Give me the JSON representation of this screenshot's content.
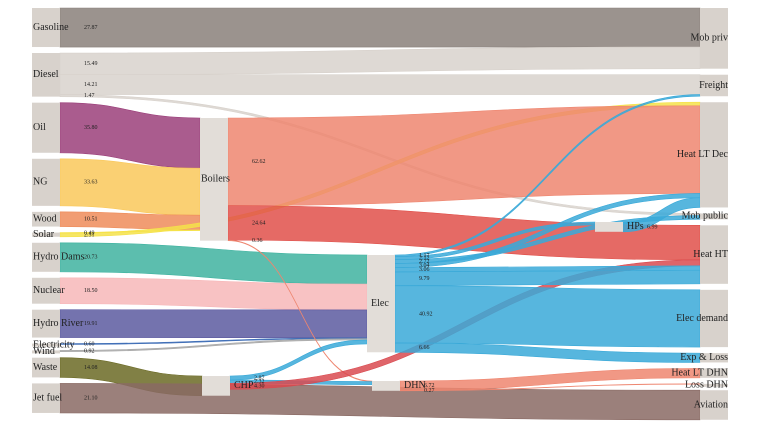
{
  "chart_data": {
    "type": "sankey",
    "nodes": [
      {
        "name": "Gasoline",
        "color": "#8a807a"
      },
      {
        "name": "Diesel",
        "color": "#d8d2cc"
      },
      {
        "name": "Oil",
        "color": "#9b3f7a"
      },
      {
        "name": "NG",
        "color": "#f9c85a"
      },
      {
        "name": "Wood",
        "color": "#ee8c5a"
      },
      {
        "name": "Solar",
        "color": "#f5e24a"
      },
      {
        "name": "Hydro Dams",
        "color": "#3fb3a0"
      },
      {
        "name": "Nuclear",
        "color": "#f7b7b9"
      },
      {
        "name": "Hydro River",
        "color": "#5c5aa0"
      },
      {
        "name": "Electricity",
        "color": "#3b6bb5"
      },
      {
        "name": "Wind",
        "color": "#a8a8a8"
      },
      {
        "name": "Waste",
        "color": "#6b6a25"
      },
      {
        "name": "Jet fuel",
        "color": "#8a6a64"
      },
      {
        "name": "Boilers",
        "color": "#ee8670"
      },
      {
        "name": "CHP",
        "color": "#3aa9d8"
      },
      {
        "name": "Elec",
        "color": "#3aa9d8"
      },
      {
        "name": "HPs",
        "color": "#3aa9d8"
      },
      {
        "name": "DHN",
        "color": "#ee8670"
      },
      {
        "name": "Mob priv",
        "color": "#d8d2cc"
      },
      {
        "name": "Freight",
        "color": "#d8d2cc"
      },
      {
        "name": "Heat LT Dec",
        "color": "#d8d2cc"
      },
      {
        "name": "Mob public",
        "color": "#d8d2cc"
      },
      {
        "name": "Heat HT",
        "color": "#d8d2cc"
      },
      {
        "name": "Elec demand",
        "color": "#d8d2cc"
      },
      {
        "name": "Exp & Loss",
        "color": "#d8d2cc"
      },
      {
        "name": "Heat LT DHN",
        "color": "#d8d2cc"
      },
      {
        "name": "Loss DHN",
        "color": "#d8d2cc"
      },
      {
        "name": "Aviation",
        "color": "#d8d2cc"
      }
    ],
    "links": [
      {
        "source": 0,
        "target": 18,
        "value": 27.87,
        "color": "#8a807a"
      },
      {
        "source": 1,
        "target": 18,
        "value": 15.49,
        "color": "#d8d2cc"
      },
      {
        "source": 1,
        "target": 19,
        "value": 14.21,
        "color": "#d8d2cc"
      },
      {
        "source": 1,
        "target": 21,
        "value": 1.47,
        "color": "#d8d2cc"
      },
      {
        "source": 2,
        "target": 13,
        "value": 35.8,
        "value_label": "35.80",
        "color": "#9b3f7a"
      },
      {
        "source": 3,
        "target": 13,
        "value": 33.63,
        "color": "#f9c85a"
      },
      {
        "source": 4,
        "target": 13,
        "value": 10.51,
        "color": "#ee8c5a"
      },
      {
        "source": 5,
        "target": 13,
        "value": 0.49,
        "color": "#f5e24a"
      },
      {
        "source": 5,
        "target": 20,
        "value": 2.51,
        "color": "#f5e24a"
      },
      {
        "source": 6,
        "target": 15,
        "value": 20.73,
        "color": "#3fb3a0"
      },
      {
        "source": 7,
        "target": 15,
        "value": 18.5,
        "value_label": "18.50",
        "color": "#f7b7b9"
      },
      {
        "source": 8,
        "target": 15,
        "value": 19.91,
        "color": "#5c5aa0"
      },
      {
        "source": 9,
        "target": 15,
        "value": 0.6,
        "value_label": "0.60",
        "color": "#3b6bb5"
      },
      {
        "source": 10,
        "target": 15,
        "value": 0.92,
        "color": "#a8a8a8"
      },
      {
        "source": 11,
        "target": 14,
        "value": 14.08,
        "color": "#6b6a25"
      },
      {
        "source": 12,
        "target": 27,
        "value": 21.1,
        "value_label": "21.10",
        "color": "#8a6a64"
      },
      {
        "source": 13,
        "target": 20,
        "value": 62.62,
        "color": "#ee8670"
      },
      {
        "source": 13,
        "target": 22,
        "value": 24.64,
        "color": "#e0504a"
      },
      {
        "source": 13,
        "target": 17,
        "value": 0.36,
        "color": "#ee8670"
      },
      {
        "source": 14,
        "target": 15,
        "value": 2.87,
        "color": "#3aa9d8"
      },
      {
        "source": 14,
        "target": 17,
        "value": 2.32,
        "color": "#3aa9d8"
      },
      {
        "source": 14,
        "target": 22,
        "value": 4.3,
        "value_label": "4.30",
        "color": "#d94a50"
      },
      {
        "source": 15,
        "target": 19,
        "value": 1.17,
        "color": "#3aa9d8"
      },
      {
        "source": 15,
        "target": 16,
        "value": 2.12,
        "color": "#3aa9d8"
      },
      {
        "source": 15,
        "target": 21,
        "value": 2.72,
        "color": "#3aa9d8"
      },
      {
        "source": 15,
        "target": 20,
        "value": 3.04,
        "color": "#3aa9d8"
      },
      {
        "source": 15,
        "target": 22,
        "value": 3.06,
        "color": "#3aa9d8"
      },
      {
        "source": 15,
        "target": 22,
        "value": 9.79,
        "color": "#3aa9d8"
      },
      {
        "source": 15,
        "target": 23,
        "value": 40.92,
        "color": "#3aa9d8"
      },
      {
        "source": 15,
        "target": 24,
        "value": 6.66,
        "color": "#3aa9d8"
      },
      {
        "source": 16,
        "target": 20,
        "value": 6.99,
        "color": "#3aa9d8"
      },
      {
        "source": 17,
        "target": 25,
        "value": 6.72,
        "color": "#ee8670"
      },
      {
        "source": 17,
        "target": 26,
        "value": 0.27,
        "color": "#ee8670"
      }
    ]
  }
}
